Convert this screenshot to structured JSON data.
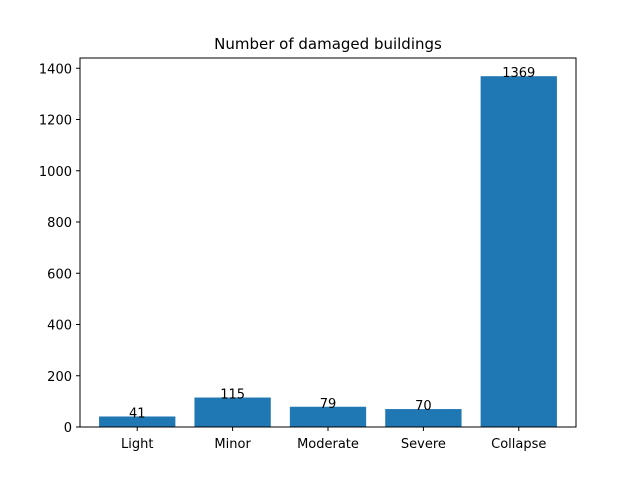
{
  "chart_data": {
    "type": "bar",
    "title": "Number of damaged buildings",
    "xlabel": "",
    "ylabel": "",
    "categories": [
      "Light",
      "Minor",
      "Moderate",
      "Severe",
      "Collapse"
    ],
    "values": [
      41,
      115,
      79,
      70,
      1369
    ],
    "data_labels": [
      "41",
      "115",
      "79",
      "70",
      "1369"
    ],
    "ylim": [
      0,
      1440
    ],
    "yticks": [
      0,
      200,
      400,
      600,
      800,
      1000,
      1200,
      1400
    ],
    "grid": false,
    "legend": "none",
    "bar_color": "#1f77b4"
  }
}
